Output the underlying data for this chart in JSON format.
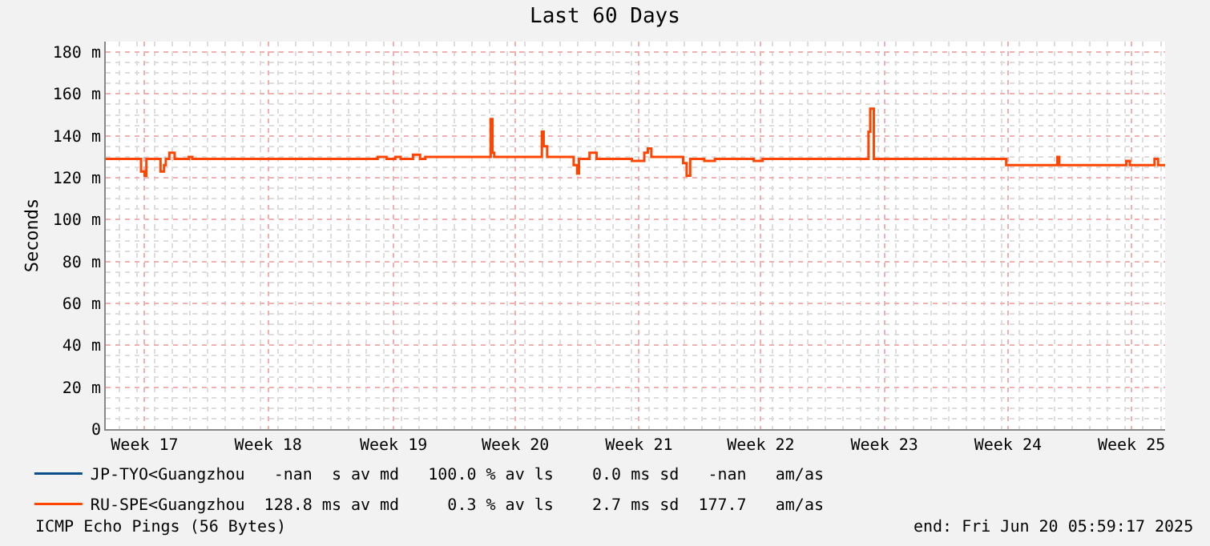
{
  "chart_data": {
    "type": "step",
    "title": "Last 60 Days",
    "ylabel": "Seconds",
    "x": [
      "2025-04-21T06:00",
      "2025-04-23T06:00",
      "2025-04-23T10:48",
      "2025-04-23T13:12",
      "2025-04-24T08:24",
      "2025-04-24T13:12",
      "2025-04-24T15:36",
      "2025-04-24T20:24",
      "2025-04-25T03:36",
      "2025-04-25T22:48",
      "2025-04-26T03:36",
      "2025-05-06T15:36",
      "2025-05-07T03:36",
      "2025-05-07T15:36",
      "2025-05-07T22:48",
      "2025-05-08T15:36",
      "2025-05-09T01:12",
      "2025-05-09T08:24",
      "2025-05-13T01:12",
      "2025-05-13T03:36",
      "2025-05-13T06:00",
      "2025-05-15T22:48",
      "2025-05-16T01:12",
      "2025-05-16T06:00",
      "2025-05-17T18:00",
      "2025-05-17T22:48",
      "2025-05-18T01:12",
      "2025-05-18T15:36",
      "2025-05-19T01:12",
      "2025-05-21T01:12",
      "2025-05-21T18:00",
      "2025-05-21T22:48",
      "2025-05-22T03:36",
      "2025-05-23T22:48",
      "2025-05-24T03:36",
      "2025-05-24T08:24",
      "2025-05-25T03:36",
      "2025-05-25T18:00",
      "2025-05-27T22:48",
      "2025-05-28T10:48",
      "2025-06-03T10:48",
      "2025-06-03T13:12",
      "2025-06-03T18:00",
      "2025-06-11T06:00",
      "2025-06-14T03:36",
      "2025-06-14T06:00",
      "2025-06-18T01:12",
      "2025-06-18T06:00",
      "2025-06-19T15:36",
      "2025-06-19T20:24",
      "2025-06-20T06:00"
    ],
    "series": [
      {
        "name": "JP-TYO<Guangzhou   -nan  s av md   100.0 % av ls    0.0 ms sd   -nan   am/as",
        "color": "#0c4d8c",
        "values": [
          null,
          null,
          null,
          null,
          null,
          null,
          null,
          null,
          null,
          null,
          null,
          null,
          null,
          null,
          null,
          null,
          null,
          null,
          null,
          null,
          null,
          null,
          null,
          null,
          null,
          null,
          null,
          null,
          null,
          null,
          null,
          null,
          null,
          null,
          null,
          null,
          null,
          null,
          null,
          null,
          null,
          null,
          null,
          null,
          null,
          null,
          null,
          null,
          null,
          null,
          null
        ]
      },
      {
        "name": "RU-SPE<Guangzhou  128.8 ms av md     0.3 % av ls    2.7 ms sd  177.7   am/as",
        "color": "#ff4500",
        "values": [
          129,
          123,
          121,
          129,
          123,
          126,
          129,
          132,
          129,
          130,
          129,
          130,
          129,
          130,
          129,
          131,
          129,
          130,
          148,
          132,
          130,
          142,
          135,
          130,
          126,
          122,
          129,
          132,
          129,
          128,
          132,
          134,
          130,
          127,
          121,
          129,
          128,
          129,
          128,
          129,
          142,
          153,
          129,
          126,
          130,
          126,
          128,
          126,
          129,
          126,
          126
        ]
      }
    ],
    "xlim": [
      "2025-04-21T06:00",
      "2025-06-20T06:00"
    ],
    "xticks": [
      {
        "value": "2025-04-23T10:48",
        "label": "Week 17"
      },
      {
        "value": "2025-04-30T10:48",
        "label": "Week 18"
      },
      {
        "value": "2025-05-07T13:12",
        "label": "Week 19"
      },
      {
        "value": "2025-05-14T10:48",
        "label": "Week 20"
      },
      {
        "value": "2025-05-21T10:48",
        "label": "Week 21"
      },
      {
        "value": "2025-05-28T08:24",
        "label": "Week 22"
      },
      {
        "value": "2025-06-04T08:24",
        "label": "Week 23"
      },
      {
        "value": "2025-06-11T08:24",
        "label": "Week 24"
      },
      {
        "value": "2025-06-18T08:24",
        "label": "Week 25"
      }
    ],
    "ylim": [
      0,
      185
    ],
    "yticks": [
      0,
      {
        "value": 20,
        "label": "20 m"
      },
      {
        "value": 40,
        "label": "40 m"
      },
      {
        "value": 60,
        "label": "60 m"
      },
      {
        "value": 80,
        "label": "80 m"
      },
      {
        "value": 100,
        "label": "100 m"
      },
      {
        "value": 120,
        "label": "120 m"
      },
      {
        "value": 140,
        "label": "140 m"
      },
      {
        "value": 160,
        "label": "160 m"
      },
      {
        "value": 180,
        "label": "180 m"
      }
    ],
    "grid": true,
    "legend": "bottom",
    "annotations": [
      "ICMP Echo Pings (56 Bytes)",
      "end: Fri Jun 20 05:59:17 2025"
    ]
  }
}
